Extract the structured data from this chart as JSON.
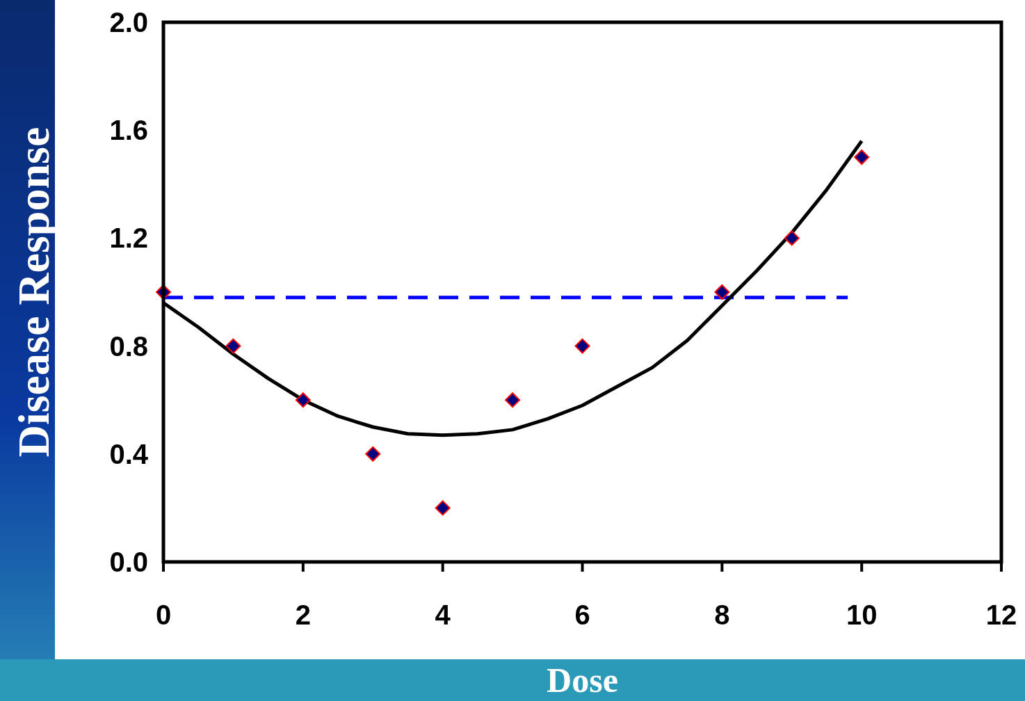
{
  "chart_data": {
    "type": "scatter",
    "xlabel": "Dose",
    "ylabel": "Disease Response",
    "xlim": [
      0,
      12
    ],
    "xticks": [
      0,
      2,
      4,
      6,
      8,
      10,
      12
    ],
    "ylim": [
      0,
      2.0
    ],
    "yticks": [
      {
        "value": 0,
        "label": "0.0"
      },
      {
        "value": 0.4,
        "label": "0.4"
      },
      {
        "value": 0.8,
        "label": "0.8"
      },
      {
        "value": 1.2,
        "label": "1.2"
      },
      {
        "value": 1.6,
        "label": "1.6"
      },
      {
        "value": 2.0,
        "label": "2.0"
      }
    ],
    "grid": false,
    "marker": "diamond",
    "series": [
      {
        "type": "line",
        "marker": "none",
        "color": "#0000ff",
        "line_style": "dashed",
        "x": [
          0,
          9.8
        ],
        "values": [
          0.98,
          0.98
        ]
      },
      {
        "type": "line",
        "marker": "none",
        "color": "#000000",
        "line_style": "solid",
        "x": [
          0,
          0.5,
          1,
          1.5,
          2,
          2.5,
          3,
          3.5,
          4,
          4.5,
          5,
          5.5,
          6,
          6.5,
          7,
          7.5,
          8,
          8.5,
          9,
          9.5,
          10
        ],
        "values": [
          0.96,
          0.87,
          0.77,
          0.68,
          0.6,
          0.54,
          0.5,
          0.475,
          0.47,
          0.475,
          0.49,
          0.53,
          0.58,
          0.65,
          0.72,
          0.82,
          0.95,
          1.08,
          1.22,
          1.38,
          1.56
        ]
      },
      {
        "color": "#000080",
        "x": [
          0,
          1,
          2,
          3,
          4,
          5,
          6,
          8,
          9,
          10
        ],
        "values": [
          1.0,
          0.8,
          0.6,
          0.4,
          0.2,
          0.6,
          0.8,
          1.0,
          1.2,
          1.5
        ]
      }
    ]
  }
}
